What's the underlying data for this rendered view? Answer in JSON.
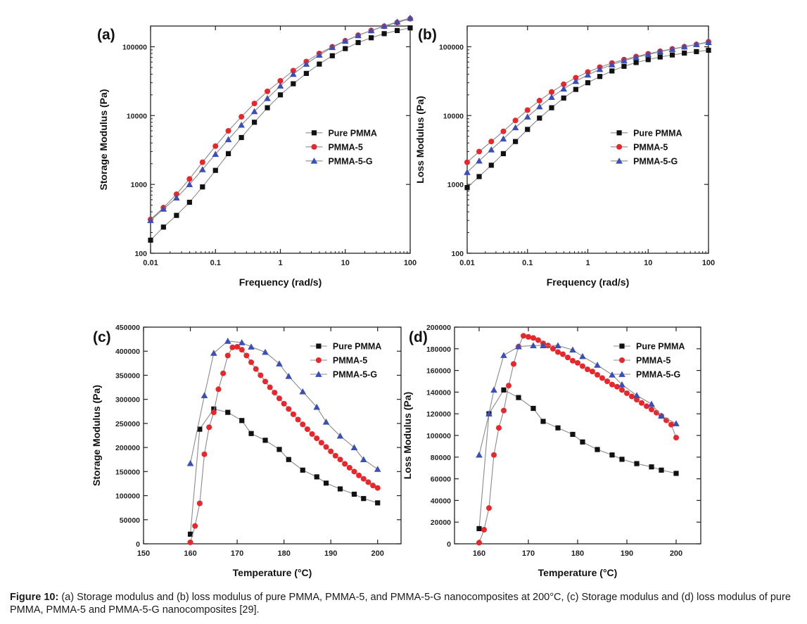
{
  "figure": {
    "caption_label": "Figure 10:",
    "caption_text": " (a) Storage modulus and (b) loss modulus of pure PMMA, PMMA-5, and PMMA-5-G nanocomposites at 200°C, (c) Storage modulus and (d) loss modulus of pure PMMA, PMMA-5 and PMMA-5-G nanocomposites [29]."
  },
  "colors": {
    "pure": "#111111",
    "pmma5": "#e8262b",
    "pmma5g": "#3b4fb8",
    "line": "#8a8a8a"
  },
  "chart_data": [
    {
      "id": "a",
      "panel_label": "(a)",
      "type": "line",
      "xscale": "log",
      "yscale": "log",
      "xlabel": "Frequency (rad/s)",
      "ylabel": "Storage Modulus (Pa)",
      "xlim": [
        0.01,
        100
      ],
      "ylim": [
        100,
        200000
      ],
      "xticks": [
        0.01,
        0.1,
        1,
        10,
        100
      ],
      "xtick_labels": [
        "0.01",
        "0.1",
        "1",
        "10",
        "100"
      ],
      "yticks": [
        100,
        1000,
        10000,
        100000
      ],
      "ytick_labels": [
        "100",
        "1000",
        "10000",
        "100000"
      ],
      "legend_position": "center-right",
      "series": [
        {
          "name": "Pure PMMA",
          "marker": "square",
          "color_key": "pure",
          "x": [
            0.01,
            0.0158,
            0.0251,
            0.0398,
            0.0631,
            0.1,
            0.158,
            0.251,
            0.398,
            0.631,
            1,
            1.58,
            2.51,
            3.98,
            6.31,
            10,
            15.8,
            25.1,
            39.8,
            63.1,
            100
          ],
          "y": [
            155,
            240,
            355,
            550,
            920,
            1600,
            2800,
            4800,
            8000,
            13000,
            20000,
            29000,
            41000,
            56000,
            74000,
            94000,
            115000,
            135000,
            155000,
            172000,
            188000
          ]
        },
        {
          "name": "PMMA-5",
          "marker": "circle",
          "color_key": "pmma5",
          "x": [
            0.01,
            0.0158,
            0.0251,
            0.0398,
            0.0631,
            0.1,
            0.158,
            0.251,
            0.398,
            0.631,
            1,
            1.58,
            2.51,
            3.98,
            6.31,
            10,
            15.8,
            25.1,
            39.8,
            63.1,
            100
          ],
          "y": [
            310,
            460,
            720,
            1200,
            2100,
            3600,
            6000,
            9600,
            15000,
            22500,
            32000,
            45000,
            61000,
            80000,
            100000,
            122000,
            147000,
            172000,
            198000,
            225000,
            255000
          ]
        },
        {
          "name": "PMMA-5-G",
          "marker": "triangle",
          "color_key": "pmma5g",
          "x": [
            0.01,
            0.0158,
            0.0251,
            0.0398,
            0.0631,
            0.1,
            0.158,
            0.251,
            0.398,
            0.631,
            1,
            1.58,
            2.51,
            3.98,
            6.31,
            10,
            15.8,
            25.1,
            39.8,
            63.1,
            100
          ],
          "y": [
            300,
            440,
            640,
            1000,
            1650,
            2750,
            4500,
            7300,
            11500,
            17800,
            27000,
            40000,
            56000,
            76000,
            98000,
            121000,
            146000,
            172000,
            200000,
            230000,
            262000
          ]
        }
      ]
    },
    {
      "id": "b",
      "panel_label": "(b)",
      "type": "line",
      "xscale": "log",
      "yscale": "log",
      "xlabel": "Frequency (rad/s)",
      "ylabel": "Loss Modulus (Pa)",
      "xlim": [
        0.01,
        100
      ],
      "ylim": [
        100,
        200000
      ],
      "xticks": [
        0.01,
        0.1,
        1,
        10,
        100
      ],
      "xtick_labels": [
        "0.01",
        "0.1",
        "1",
        "10",
        "100"
      ],
      "yticks": [
        100,
        1000,
        10000,
        100000
      ],
      "ytick_labels": [
        "100",
        "1000",
        "10000",
        "100000"
      ],
      "legend_position": "center-right",
      "series": [
        {
          "name": "Pure PMMA",
          "marker": "square",
          "color_key": "pure",
          "x": [
            0.01,
            0.0158,
            0.0251,
            0.0398,
            0.0631,
            0.1,
            0.158,
            0.251,
            0.398,
            0.631,
            1,
            1.58,
            2.51,
            3.98,
            6.31,
            10,
            15.8,
            25.1,
            39.8,
            63.1,
            100
          ],
          "y": [
            900,
            1300,
            1900,
            2800,
            4200,
            6300,
            9200,
            13000,
            18000,
            24000,
            30000,
            37000,
            44500,
            52000,
            59000,
            65000,
            71000,
            76000,
            81000,
            85000,
            89000
          ]
        },
        {
          "name": "PMMA-5",
          "marker": "circle",
          "color_key": "pmma5",
          "x": [
            0.01,
            0.0158,
            0.0251,
            0.0398,
            0.0631,
            0.1,
            0.158,
            0.251,
            0.398,
            0.631,
            1,
            1.58,
            2.51,
            3.98,
            6.31,
            10,
            15.8,
            25.1,
            39.8,
            63.1,
            100
          ],
          "y": [
            2100,
            3000,
            4200,
            5900,
            8500,
            12000,
            16500,
            22000,
            28500,
            35500,
            43000,
            50500,
            58000,
            65000,
            72000,
            79000,
            86000,
            93000,
            100000,
            108000,
            118000
          ]
        },
        {
          "name": "PMMA-5-G",
          "marker": "triangle",
          "color_key": "pmma5g",
          "x": [
            0.01,
            0.0158,
            0.0251,
            0.0398,
            0.0631,
            0.1,
            0.158,
            0.251,
            0.398,
            0.631,
            1,
            1.58,
            2.51,
            3.98,
            6.31,
            10,
            15.8,
            25.1,
            39.8,
            63.1,
            100
          ],
          "y": [
            1500,
            2200,
            3200,
            4600,
            6700,
            9600,
            13500,
            18500,
            24500,
            31500,
            39000,
            47000,
            55000,
            63000,
            70000,
            77000,
            85000,
            92000,
            100000,
            108000,
            116000
          ]
        }
      ]
    },
    {
      "id": "c",
      "panel_label": "(c)",
      "type": "line",
      "xscale": "linear",
      "yscale": "linear",
      "xlabel": "Temperature (°C)",
      "ylabel": "Storage Modulus (Pa)",
      "xlim": [
        150,
        205
      ],
      "ylim": [
        0,
        450000
      ],
      "xticks": [
        150,
        160,
        170,
        180,
        190,
        200
      ],
      "xtick_labels": [
        "150",
        "160",
        "170",
        "180",
        "190",
        "200"
      ],
      "yticks": [
        0,
        50000,
        100000,
        150000,
        200000,
        250000,
        300000,
        350000,
        400000,
        450000
      ],
      "ytick_labels": [
        "0",
        "50000",
        "100000",
        "150000",
        "200000",
        "250000",
        "300000",
        "350000",
        "400000",
        "450000"
      ],
      "legend_position": "top-right",
      "series": [
        {
          "name": "Pure PMMA",
          "marker": "square",
          "color_key": "pure",
          "x": [
            160,
            162,
            165,
            168,
            171,
            173,
            176,
            179,
            181,
            184,
            187,
            189,
            192,
            195,
            197,
            200
          ],
          "y": [
            20000,
            238000,
            280000,
            273000,
            256000,
            229000,
            215000,
            196000,
            175000,
            153000,
            139000,
            126000,
            114000,
            103000,
            94000,
            85000
          ]
        },
        {
          "name": "PMMA-5",
          "marker": "circle",
          "color_key": "pmma5",
          "x": [
            160,
            161,
            162,
            163,
            164,
            165,
            166,
            167,
            168,
            169,
            170,
            171,
            172,
            173,
            174,
            175,
            176,
            177,
            178,
            179,
            180,
            181,
            182,
            183,
            184,
            185,
            186,
            187,
            188,
            189,
            190,
            191,
            192,
            193,
            194,
            195,
            196,
            197,
            198,
            199,
            200
          ],
          "y": [
            3000,
            37000,
            84000,
            186000,
            242000,
            273000,
            321000,
            354000,
            391000,
            408000,
            409000,
            403000,
            391000,
            377000,
            363000,
            350000,
            337000,
            325000,
            314000,
            302000,
            291000,
            280000,
            269000,
            258000,
            248000,
            238000,
            228000,
            219000,
            210000,
            201000,
            192000,
            183000,
            175000,
            166000,
            158000,
            150000,
            142000,
            135000,
            128000,
            121000,
            116000
          ]
        },
        {
          "name": "PMMA-5-G",
          "marker": "triangle",
          "color_key": "pmma5g",
          "x": [
            160,
            163,
            165,
            168,
            171,
            173,
            176,
            179,
            181,
            184,
            187,
            189,
            192,
            195,
            197,
            200
          ],
          "y": [
            167000,
            308000,
            396000,
            421000,
            418000,
            409000,
            398000,
            374000,
            348000,
            316000,
            284000,
            253000,
            224000,
            200000,
            175000,
            155000
          ]
        }
      ]
    },
    {
      "id": "d",
      "panel_label": "(d)",
      "type": "line",
      "xscale": "linear",
      "yscale": "linear",
      "xlabel": "Temperature (°C)",
      "ylabel": "Loss Modulus (Pa)",
      "xlim": [
        155,
        205
      ],
      "ylim": [
        0,
        200000
      ],
      "xticks": [
        160,
        170,
        180,
        190,
        200
      ],
      "xtick_labels": [
        "160",
        "170",
        "180",
        "190",
        "200"
      ],
      "yticks": [
        0,
        20000,
        40000,
        60000,
        80000,
        100000,
        120000,
        140000,
        160000,
        180000,
        200000
      ],
      "ytick_labels": [
        "0",
        "20000",
        "40000",
        "60000",
        "80000",
        "100000",
        "120000",
        "140000",
        "160000",
        "180000",
        "200000"
      ],
      "legend_position": "top-right",
      "series": [
        {
          "name": "Pure PMMA",
          "marker": "square",
          "color_key": "pure",
          "x": [
            160,
            162,
            165,
            168,
            171,
            173,
            176,
            179,
            181,
            184,
            187,
            189,
            192,
            195,
            197,
            200
          ],
          "y": [
            14000,
            120000,
            142000,
            135000,
            125000,
            113000,
            107000,
            101000,
            94000,
            87000,
            82000,
            78000,
            74000,
            71000,
            68000,
            65000
          ]
        },
        {
          "name": "PMMA-5",
          "marker": "circle",
          "color_key": "pmma5",
          "x": [
            160,
            161,
            162,
            163,
            164,
            165,
            166,
            167,
            168,
            169,
            170,
            171,
            172,
            173,
            174,
            175,
            176,
            177,
            178,
            179,
            180,
            181,
            182,
            183,
            184,
            185,
            186,
            187,
            188,
            189,
            190,
            191,
            192,
            193,
            194,
            195,
            196,
            197,
            198,
            199,
            200
          ],
          "y": [
            1000,
            13000,
            33000,
            82000,
            107000,
            123000,
            146000,
            166000,
            182000,
            192000,
            191000,
            190000,
            188000,
            185000,
            183000,
            180000,
            177000,
            175000,
            172000,
            169000,
            167000,
            164000,
            161000,
            159000,
            156000,
            153000,
            150000,
            147000,
            145000,
            142000,
            139000,
            136000,
            133000,
            130000,
            127000,
            124000,
            121000,
            118000,
            114000,
            110000,
            98000
          ]
        },
        {
          "name": "PMMA-5-G",
          "marker": "triangle",
          "color_key": "pmma5g",
          "x": [
            160,
            162,
            163,
            165,
            168,
            171,
            173,
            176,
            179,
            181,
            184,
            187,
            189,
            192,
            195,
            197,
            200
          ],
          "y": [
            82000,
            120000,
            142000,
            174000,
            182000,
            183000,
            183000,
            183000,
            179000,
            173000,
            165000,
            156000,
            147000,
            137000,
            129000,
            118000,
            111000
          ]
        }
      ]
    }
  ]
}
